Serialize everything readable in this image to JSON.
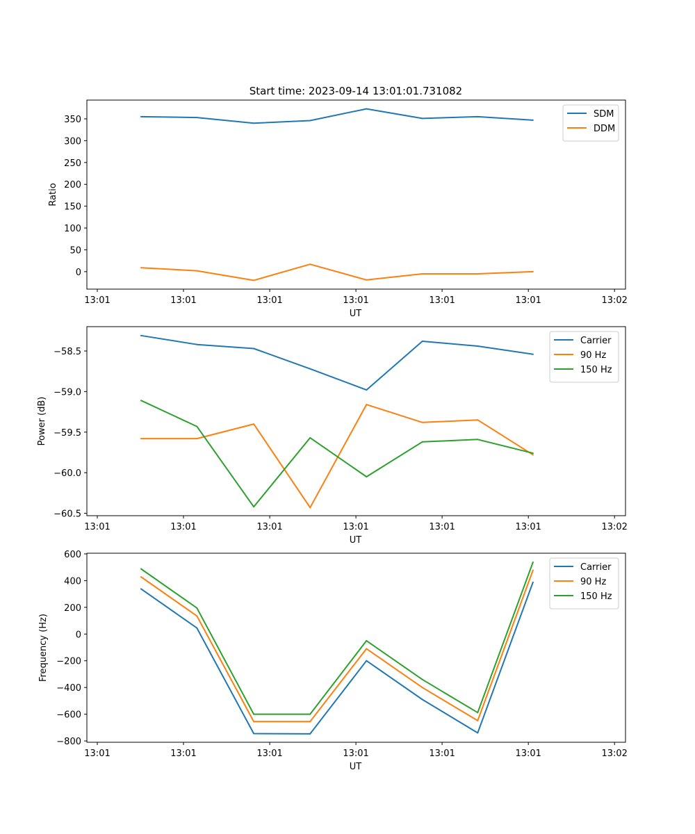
{
  "figure": {
    "title": "Start time: 2023-09-14 13:01:01.731082"
  },
  "chart_data": [
    {
      "type": "line",
      "title": "Start time: 2023-09-14 13:01:01.731082",
      "xlabel": "UT",
      "ylabel": "Ratio",
      "xlim": [
        0,
        1
      ],
      "ylim": [
        -40,
        393
      ],
      "x": [
        0.083,
        0.189,
        0.297,
        0.404,
        0.511,
        0.617,
        0.722,
        0.827
      ],
      "x_tick_positions": [
        0,
        0.1636,
        0.3273,
        0.4909,
        0.6545,
        0.8182,
        0.9818
      ],
      "x_tick_labels": [
        "13:01",
        "13:01",
        "13:01",
        "13:01",
        "13:01",
        "13:01",
        "13:02"
      ],
      "y_ticks": [
        0,
        50,
        100,
        150,
        200,
        250,
        300,
        350
      ],
      "legend_position": "top-right",
      "series": [
        {
          "name": "SDM",
          "color": "#1f77b4",
          "values": [
            355,
            353,
            340,
            346,
            373,
            351,
            355,
            347
          ]
        },
        {
          "name": "DDM",
          "color": "#ff7f0e",
          "values": [
            9,
            2,
            -20,
            17,
            -19,
            -5,
            -5,
            0
          ]
        }
      ]
    },
    {
      "type": "line",
      "title": "",
      "xlabel": "UT",
      "ylabel": "Power (dB)",
      "xlim": [
        0,
        1
      ],
      "ylim": [
        -60.53,
        -58.2
      ],
      "x": [
        0.083,
        0.189,
        0.297,
        0.404,
        0.511,
        0.617,
        0.722,
        0.827
      ],
      "x_tick_positions": [
        0,
        0.1636,
        0.3273,
        0.4909,
        0.6545,
        0.8182,
        0.9818
      ],
      "x_tick_labels": [
        "13:01",
        "13:01",
        "13:01",
        "13:01",
        "13:01",
        "13:01",
        "13:02"
      ],
      "y_ticks": [
        -60.5,
        -60.0,
        -59.5,
        -59.0,
        -58.5
      ],
      "y_tick_labels": [
        "−60.5",
        "−60.0",
        "−59.5",
        "−59.0",
        "−58.5"
      ],
      "legend_position": "top-right",
      "series": [
        {
          "name": "Carrier",
          "color": "#1f77b4",
          "values": [
            -58.31,
            -58.42,
            -58.47,
            -58.72,
            -58.98,
            -58.38,
            -58.44,
            -58.54
          ]
        },
        {
          "name": "90 Hz",
          "color": "#ff7f0e",
          "values": [
            -59.58,
            -59.58,
            -59.4,
            -60.43,
            -59.16,
            -59.38,
            -59.35,
            -59.78
          ]
        },
        {
          "name": "150 Hz",
          "color": "#2ca02c",
          "values": [
            -59.11,
            -59.43,
            -60.42,
            -59.57,
            -60.05,
            -59.62,
            -59.59,
            -59.76
          ]
        }
      ]
    },
    {
      "type": "line",
      "title": "",
      "xlabel": "UT",
      "ylabel": "Frequency (Hz)",
      "xlim": [
        0,
        1
      ],
      "ylim": [
        -810,
        605
      ],
      "x": [
        0.083,
        0.189,
        0.297,
        0.404,
        0.511,
        0.617,
        0.722,
        0.827
      ],
      "x_tick_positions": [
        0,
        0.1636,
        0.3273,
        0.4909,
        0.6545,
        0.8182,
        0.9818
      ],
      "x_tick_labels": [
        "13:01",
        "13:01",
        "13:01",
        "13:01",
        "13:01",
        "13:01",
        "13:02"
      ],
      "y_ticks": [
        -800,
        -600,
        -400,
        -200,
        0,
        200,
        400,
        600
      ],
      "y_tick_labels": [
        "−800",
        "−600",
        "−400",
        "−200",
        "0",
        "200",
        "400",
        "600"
      ],
      "legend_position": "top-right",
      "series": [
        {
          "name": "Carrier",
          "color": "#1f77b4",
          "values": [
            338,
            45,
            -745,
            -747,
            -200,
            -490,
            -740,
            388
          ]
        },
        {
          "name": "90 Hz",
          "color": "#ff7f0e",
          "values": [
            428,
            135,
            -655,
            -655,
            -110,
            -400,
            -648,
            478
          ]
        },
        {
          "name": "150 Hz",
          "color": "#2ca02c",
          "values": [
            488,
            195,
            -600,
            -600,
            -50,
            -340,
            -588,
            538
          ]
        }
      ]
    }
  ]
}
